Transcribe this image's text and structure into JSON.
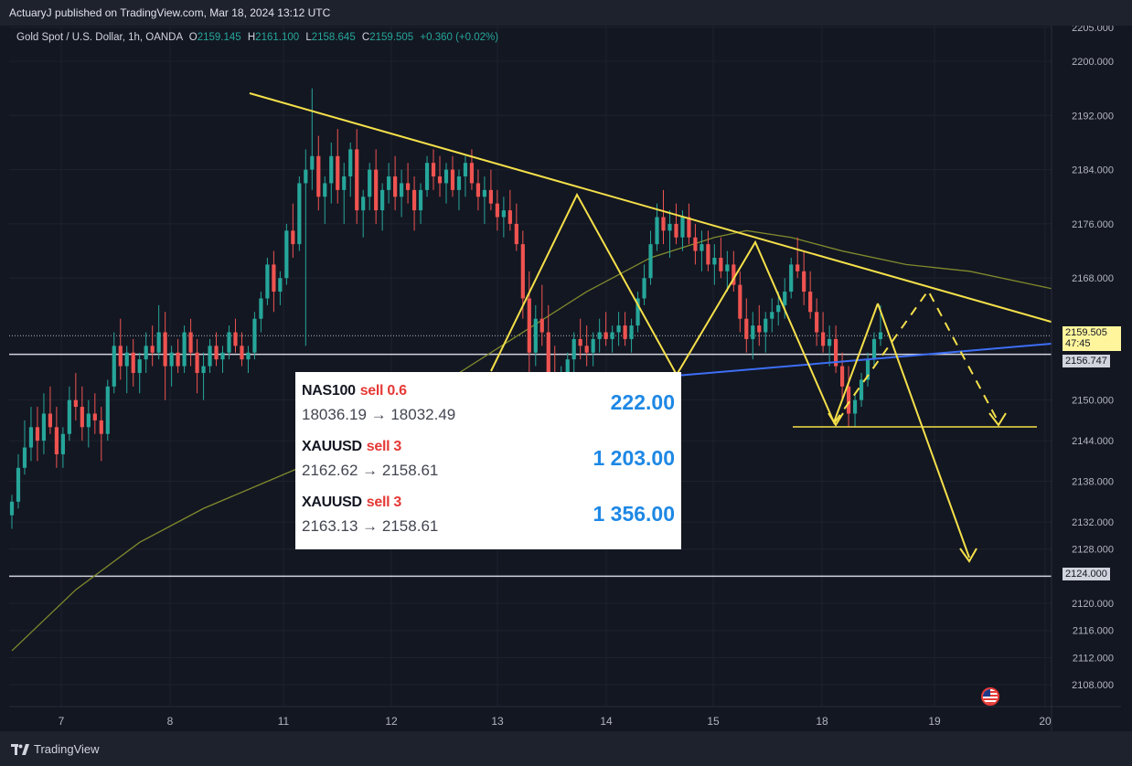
{
  "header": {
    "published": "ActuaryJ published on TradingView.com, Mar 18, 2024 13:12 UTC"
  },
  "legend": {
    "symbol": "Gold Spot / U.S. Dollar, 1h, OANDA",
    "open_label": "O",
    "open": "2159.145",
    "high_label": "H",
    "high": "2161.100",
    "low_label": "L",
    "low": "2158.645",
    "close_label": "C",
    "close": "2159.505",
    "change": "+0.360 (+0.02%)"
  },
  "price_tags": {
    "current": "2159.505",
    "countdown": "47:45",
    "support": "2156.747",
    "target": "2124.000"
  },
  "trades": [
    {
      "symbol": "NAS100",
      "side": "sell 0.6",
      "prices": "18036.19 → 18032.49",
      "profit": "222.00"
    },
    {
      "symbol": "XAUUSD",
      "side": "sell 3",
      "prices": "2162.62 → 2158.61",
      "profit": "1 203.00"
    },
    {
      "symbol": "XAUUSD",
      "side": "sell 3",
      "prices": "2163.13 → 2158.61",
      "profit": "1 356.00"
    }
  ],
  "footer": {
    "brand": "TradingView"
  },
  "colors": {
    "up": "#26a69a",
    "down": "#ef5350",
    "drawing": "#f5e04a",
    "trendline_blue": "#3d6ef5",
    "ma": "#808a2c",
    "background": "#131722"
  },
  "icons": {
    "logo": "tradingview-logo-icon",
    "flag": "us-flag-icon"
  },
  "chart_data": {
    "type": "candlestick",
    "y_ticks": [
      "2205.000",
      "2200.000",
      "2192.000",
      "2184.000",
      "2176.000",
      "2168.000",
      "2150.000",
      "2144.000",
      "2138.000",
      "2132.000",
      "2128.000",
      "2120.000",
      "2116.000",
      "2112.000",
      "2108.000"
    ],
    "x_ticks": [
      "7",
      "8",
      "11",
      "12",
      "13",
      "14",
      "15",
      "18",
      "19",
      "20"
    ],
    "ylim": [
      2103,
      2206
    ],
    "candles": [
      [
        2133,
        2136,
        2131,
        2135
      ],
      [
        2135,
        2142,
        2134,
        2140
      ],
      [
        2140,
        2147,
        2139,
        2143
      ],
      [
        2143,
        2149,
        2141,
        2146
      ],
      [
        2146,
        2149,
        2141,
        2144
      ],
      [
        2144,
        2151,
        2142,
        2148
      ],
      [
        2148,
        2152,
        2145,
        2146
      ],
      [
        2146,
        2149,
        2140,
        2142
      ],
      [
        2142,
        2146,
        2140,
        2145
      ],
      [
        2145,
        2152,
        2144,
        2150
      ],
      [
        2150,
        2154,
        2147,
        2149
      ],
      [
        2149,
        2152,
        2144,
        2146
      ],
      [
        2146,
        2150,
        2143,
        2148
      ],
      [
        2148,
        2151,
        2145,
        2147
      ],
      [
        2147,
        2149,
        2141,
        2145
      ],
      [
        2145,
        2153,
        2144,
        2152
      ],
      [
        2152,
        2160,
        2151,
        2158
      ],
      [
        2158,
        2162,
        2153,
        2155
      ],
      [
        2155,
        2158,
        2151,
        2157
      ],
      [
        2157,
        2159,
        2152,
        2154
      ],
      [
        2154,
        2157,
        2151,
        2156
      ],
      [
        2156,
        2160,
        2154,
        2158
      ],
      [
        2158,
        2161,
        2155,
        2157
      ],
      [
        2157,
        2164,
        2156,
        2160
      ],
      [
        2160,
        2163,
        2150,
        2155
      ],
      [
        2155,
        2158,
        2152,
        2157
      ],
      [
        2157,
        2159,
        2154,
        2155
      ],
      [
        2155,
        2161,
        2154,
        2160
      ],
      [
        2160,
        2162,
        2155,
        2157
      ],
      [
        2157,
        2159,
        2151,
        2154
      ],
      [
        2154,
        2157,
        2150,
        2155
      ],
      [
        2155,
        2159,
        2154,
        2158
      ],
      [
        2158,
        2160,
        2155,
        2156
      ],
      [
        2156,
        2158,
        2154,
        2157
      ],
      [
        2157,
        2161,
        2156,
        2160
      ],
      [
        2160,
        2162,
        2157,
        2158
      ],
      [
        2158,
        2160,
        2155,
        2156
      ],
      [
        2156,
        2158,
        2154,
        2157
      ],
      [
        2157,
        2163,
        2156,
        2162
      ],
      [
        2162,
        2166,
        2160,
        2165
      ],
      [
        2165,
        2171,
        2164,
        2170
      ],
      [
        2170,
        2172,
        2163,
        2166
      ],
      [
        2166,
        2169,
        2164,
        2168
      ],
      [
        2168,
        2176,
        2167,
        2175
      ],
      [
        2175,
        2179,
        2171,
        2173
      ],
      [
        2173,
        2183,
        2172,
        2182
      ],
      [
        2182,
        2187,
        2158,
        2184
      ],
      [
        2184,
        2196,
        2181,
        2186
      ],
      [
        2186,
        2189,
        2178,
        2180
      ],
      [
        2180,
        2183,
        2176,
        2182
      ],
      [
        2182,
        2188,
        2179,
        2186
      ],
      [
        2186,
        2190,
        2179,
        2181
      ],
      [
        2181,
        2185,
        2176,
        2183
      ],
      [
        2183,
        2188,
        2180,
        2187
      ],
      [
        2187,
        2190,
        2176,
        2178
      ],
      [
        2178,
        2181,
        2174,
        2180
      ],
      [
        2180,
        2185,
        2178,
        2184
      ],
      [
        2184,
        2187,
        2176,
        2178
      ],
      [
        2178,
        2182,
        2175,
        2181
      ],
      [
        2181,
        2185,
        2179,
        2183
      ],
      [
        2183,
        2186,
        2178,
        2180
      ],
      [
        2180,
        2184,
        2177,
        2182
      ],
      [
        2182,
        2185,
        2179,
        2181
      ],
      [
        2181,
        2183,
        2175,
        2178
      ],
      [
        2178,
        2182,
        2176,
        2181
      ],
      [
        2181,
        2186,
        2180,
        2185
      ],
      [
        2185,
        2187,
        2181,
        2183
      ],
      [
        2183,
        2186,
        2180,
        2182
      ],
      [
        2182,
        2185,
        2179,
        2184
      ],
      [
        2184,
        2186,
        2180,
        2181
      ],
      [
        2181,
        2184,
        2178,
        2183
      ],
      [
        2183,
        2186,
        2180,
        2185
      ],
      [
        2185,
        2187,
        2181,
        2182
      ],
      [
        2182,
        2184,
        2178,
        2180
      ],
      [
        2180,
        2183,
        2176,
        2181
      ],
      [
        2181,
        2184,
        2178,
        2179
      ],
      [
        2179,
        2181,
        2175,
        2177
      ],
      [
        2177,
        2180,
        2174,
        2178
      ],
      [
        2178,
        2181,
        2175,
        2176
      ],
      [
        2176,
        2179,
        2172,
        2173
      ],
      [
        2173,
        2175,
        2162,
        2165
      ],
      [
        2165,
        2169,
        2154,
        2157
      ],
      [
        2157,
        2164,
        2155,
        2162
      ],
      [
        2162,
        2167,
        2158,
        2160
      ],
      [
        2160,
        2164,
        2152,
        2154
      ],
      [
        2154,
        2158,
        2147,
        2150
      ],
      [
        2150,
        2155,
        2149,
        2153
      ],
      [
        2153,
        2157,
        2152,
        2156
      ],
      [
        2156,
        2160,
        2154,
        2159
      ],
      [
        2159,
        2162,
        2156,
        2158
      ],
      [
        2158,
        2161,
        2155,
        2157
      ],
      [
        2157,
        2160,
        2155,
        2159
      ],
      [
        2159,
        2162,
        2157,
        2160
      ],
      [
        2160,
        2163,
        2158,
        2159
      ],
      [
        2159,
        2161,
        2157,
        2160
      ],
      [
        2160,
        2163,
        2158,
        2161
      ],
      [
        2161,
        2163,
        2158,
        2159
      ],
      [
        2159,
        2162,
        2157,
        2161
      ],
      [
        2161,
        2166,
        2160,
        2165
      ],
      [
        2165,
        2170,
        2164,
        2168
      ],
      [
        2168,
        2175,
        2167,
        2173
      ],
      [
        2173,
        2179,
        2172,
        2177
      ],
      [
        2177,
        2181,
        2173,
        2175
      ],
      [
        2175,
        2178,
        2171,
        2176
      ],
      [
        2176,
        2179,
        2173,
        2174
      ],
      [
        2174,
        2178,
        2172,
        2177
      ],
      [
        2177,
        2179,
        2173,
        2174
      ],
      [
        2174,
        2176,
        2170,
        2172
      ],
      [
        2172,
        2175,
        2169,
        2173
      ],
      [
        2173,
        2175,
        2169,
        2170
      ],
      [
        2170,
        2173,
        2167,
        2171
      ],
      [
        2171,
        2174,
        2168,
        2169
      ],
      [
        2169,
        2172,
        2166,
        2170
      ],
      [
        2170,
        2172,
        2166,
        2167
      ],
      [
        2167,
        2169,
        2160,
        2162
      ],
      [
        2162,
        2165,
        2157,
        2159
      ],
      [
        2159,
        2163,
        2156,
        2161
      ],
      [
        2161,
        2164,
        2158,
        2160
      ],
      [
        2160,
        2163,
        2157,
        2162
      ],
      [
        2162,
        2165,
        2160,
        2163
      ],
      [
        2163,
        2166,
        2161,
        2164
      ],
      [
        2164,
        2168,
        2162,
        2166
      ],
      [
        2166,
        2171,
        2165,
        2170
      ],
      [
        2170,
        2174,
        2168,
        2169
      ],
      [
        2169,
        2172,
        2164,
        2166
      ],
      [
        2166,
        2169,
        2162,
        2163
      ],
      [
        2163,
        2165,
        2158,
        2160
      ],
      [
        2160,
        2163,
        2157,
        2158
      ],
      [
        2158,
        2161,
        2155,
        2159
      ],
      [
        2159,
        2161,
        2154,
        2155
      ],
      [
        2155,
        2157,
        2150,
        2152
      ],
      [
        2152,
        2155,
        2146,
        2148
      ],
      [
        2148,
        2151,
        2146,
        2150
      ],
      [
        2150,
        2154,
        2149,
        2153
      ],
      [
        2153,
        2157,
        2152,
        2156
      ],
      [
        2156,
        2160,
        2155,
        2159
      ],
      [
        2159,
        2164,
        2158,
        2160
      ]
    ],
    "moving_average": [
      [
        0,
        2113
      ],
      [
        10,
        2122
      ],
      [
        20,
        2129
      ],
      [
        30,
        2134
      ],
      [
        40,
        2138
      ],
      [
        50,
        2142
      ],
      [
        60,
        2147
      ],
      [
        70,
        2154
      ],
      [
        80,
        2160
      ],
      [
        90,
        2166
      ],
      [
        100,
        2171
      ],
      [
        110,
        2174
      ],
      [
        115,
        2175
      ],
      [
        122,
        2174
      ],
      [
        130,
        2172
      ],
      [
        140,
        2170
      ],
      [
        150,
        2169
      ],
      [
        160,
        2167
      ],
      [
        170,
        2165
      ],
      [
        180,
        2163
      ],
      [
        190,
        2163
      ],
      [
        200,
        2162
      ],
      [
        210,
        2161
      ]
    ]
  }
}
